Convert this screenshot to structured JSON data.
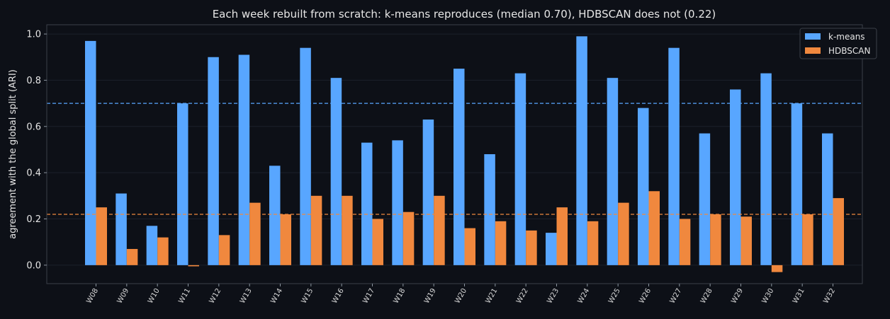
{
  "chart_data": {
    "type": "bar",
    "title": "Each week rebuilt from scratch: k-means reproduces (median 0.70), HDBSCAN does not (0.22)",
    "xlabel": "",
    "ylabel": "agreement with the global split (ARI)",
    "ylim": [
      -0.08,
      1.04
    ],
    "yticks": [
      0.0,
      0.2,
      0.4,
      0.6,
      0.8,
      1.0
    ],
    "ytick_labels": [
      "0.0",
      "0.2",
      "0.4",
      "0.6",
      "0.8",
      "1.0"
    ],
    "categories": [
      "W08",
      "W09",
      "W10",
      "W11",
      "W12",
      "W13",
      "W14",
      "W15",
      "W16",
      "W17",
      "W18",
      "W19",
      "W20",
      "W21",
      "W22",
      "W23",
      "W24",
      "W25",
      "W26",
      "W27",
      "W28",
      "W29",
      "W30",
      "W31",
      "W32"
    ],
    "series": [
      {
        "name": "k-means",
        "color": "#58a6ff",
        "values": [
          0.97,
          0.31,
          0.17,
          0.7,
          0.9,
          0.91,
          0.43,
          0.94,
          0.81,
          0.53,
          0.54,
          0.63,
          0.85,
          0.48,
          0.83,
          0.14,
          0.99,
          0.81,
          0.68,
          0.94,
          0.57,
          0.76,
          0.83,
          0.7,
          0.57
        ]
      },
      {
        "name": "HDBSCAN",
        "color": "#f0883e",
        "values": [
          0.25,
          0.07,
          0.12,
          -0.005,
          0.13,
          0.27,
          0.22,
          0.3,
          0.3,
          0.2,
          0.23,
          0.3,
          0.16,
          0.19,
          0.15,
          0.25,
          0.19,
          0.27,
          0.32,
          0.2,
          0.22,
          0.21,
          -0.03,
          0.22,
          0.29
        ]
      }
    ],
    "reference_lines": [
      {
        "series": "k-means",
        "value": 0.7,
        "color": "#58a6ff",
        "style": "dashed"
      },
      {
        "series": "HDBSCAN",
        "value": 0.22,
        "color": "#f0883e",
        "style": "dashed"
      }
    ],
    "grid": true,
    "legend_position": "top-right"
  }
}
